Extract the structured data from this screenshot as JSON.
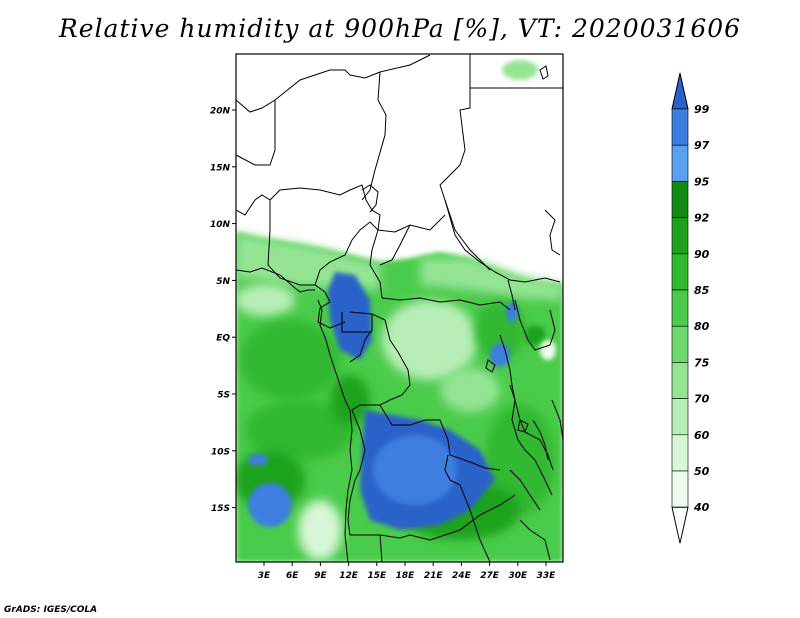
{
  "title": "Relative humidity at 900hPa [%], VT: 2020031606",
  "map": {
    "lat_labels": [
      "20N",
      "15N",
      "10N",
      "5N",
      "EQ",
      "5S",
      "10S",
      "15S"
    ],
    "lon_labels": [
      "3E",
      "6E",
      "9E",
      "12E",
      "15E",
      "18E",
      "21E",
      "24E",
      "27E",
      "30E",
      "33E"
    ]
  },
  "legend": {
    "labels": [
      "99",
      "97",
      "95",
      "92",
      "90",
      "85",
      "80",
      "75",
      "70",
      "60",
      "50",
      "40"
    ],
    "colors": [
      "#2a62c9",
      "#3d7ee0",
      "#5b9ff0",
      "#138a13",
      "#1ea21e",
      "#31b831",
      "#4bcb4b",
      "#6fd96f",
      "#94e494",
      "#b7eeb7",
      "#d6f6d6",
      "#eefcee"
    ],
    "top_arrow_color": "#2a62c9",
    "bottom_arrow_color": "#ffffff"
  },
  "footer": "GrADS: IGES/COLA"
}
